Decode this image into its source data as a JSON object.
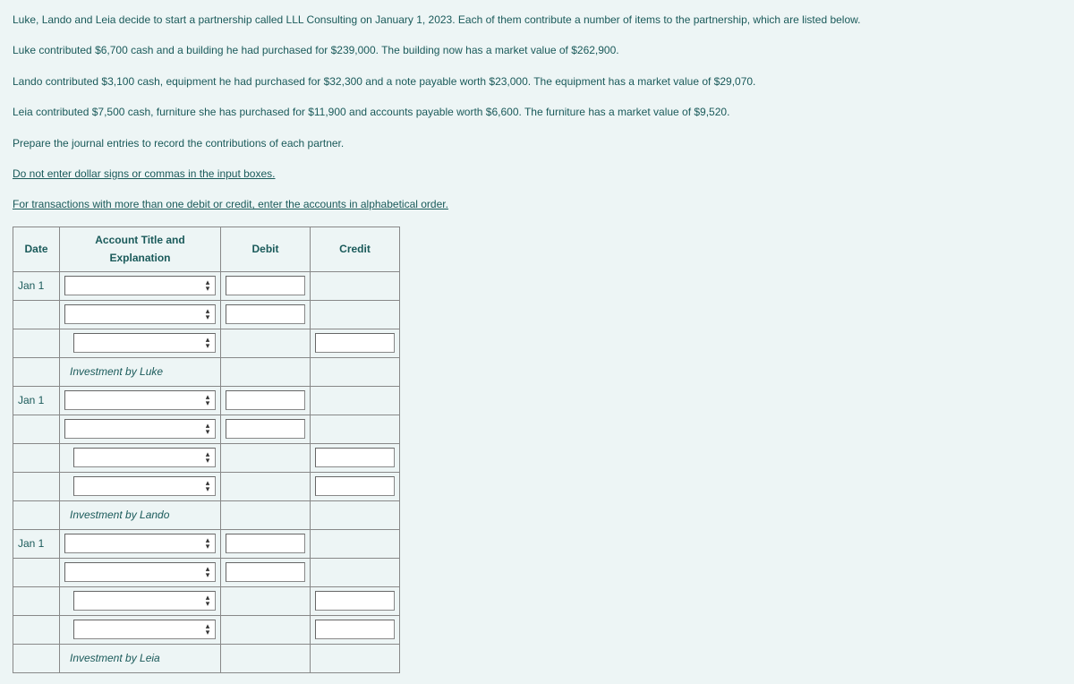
{
  "problem": {
    "p1": "Luke, Lando and Leia decide to start a partnership called LLL Consulting on January 1, 2023. Each of them contribute a number of items to the partnership, which are listed below.",
    "p2": "Luke contributed $6,700 cash and a building he had purchased for $239,000. The building now has a market value of $262,900.",
    "p3": "Lando contributed $3,100 cash, equipment he had purchased for $32,300 and a note payable worth $23,000. The equipment has a market value of $29,070.",
    "p4": "Leia contributed $7,500 cash, furniture she has purchased for $11,900 and accounts payable worth $6,600. The furniture has a market value of $9,520.",
    "p5": "Prepare the journal entries to record the contributions of each partner."
  },
  "instructions": {
    "line1": "Do not enter dollar signs or commas in the input boxes.",
    "line2": "For transactions with more than one debit or credit, enter the accounts in alphabetical order."
  },
  "headers": {
    "date": "Date",
    "acct": "Account Title and Explanation",
    "debit": "Debit",
    "credit": "Credit"
  },
  "rows": [
    {
      "date": "Jan 1",
      "acctIndent": 0,
      "debit": true,
      "credit": false,
      "explain": ""
    },
    {
      "date": "",
      "acctIndent": 0,
      "debit": true,
      "credit": false,
      "explain": ""
    },
    {
      "date": "",
      "acctIndent": 1,
      "debit": false,
      "credit": true,
      "explain": ""
    },
    {
      "date": "",
      "acctIndent": -1,
      "debit": false,
      "credit": false,
      "explain": "Investment by Luke"
    },
    {
      "date": "Jan 1",
      "acctIndent": 0,
      "debit": true,
      "credit": false,
      "explain": ""
    },
    {
      "date": "",
      "acctIndent": 0,
      "debit": true,
      "credit": false,
      "explain": ""
    },
    {
      "date": "",
      "acctIndent": 1,
      "debit": false,
      "credit": true,
      "explain": ""
    },
    {
      "date": "",
      "acctIndent": 1,
      "debit": false,
      "credit": true,
      "explain": ""
    },
    {
      "date": "",
      "acctIndent": -1,
      "debit": false,
      "credit": false,
      "explain": "Investment by Lando"
    },
    {
      "date": "Jan 1",
      "acctIndent": 0,
      "debit": true,
      "credit": false,
      "explain": ""
    },
    {
      "date": "",
      "acctIndent": 0,
      "debit": true,
      "credit": false,
      "explain": ""
    },
    {
      "date": "",
      "acctIndent": 1,
      "debit": false,
      "credit": true,
      "explain": ""
    },
    {
      "date": "",
      "acctIndent": 1,
      "debit": false,
      "credit": true,
      "explain": ""
    },
    {
      "date": "",
      "acctIndent": -1,
      "debit": false,
      "credit": false,
      "explain": "Investment by Leia"
    }
  ]
}
